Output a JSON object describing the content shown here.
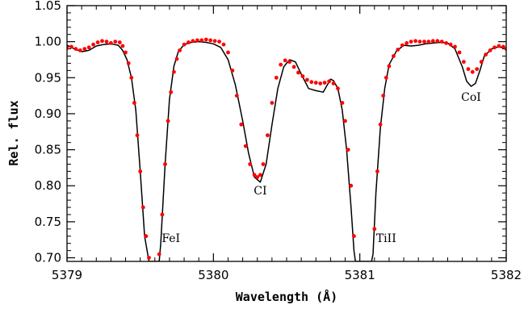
{
  "chart_data": {
    "type": "line",
    "xlabel": "Wavelength (Å)",
    "ylabel": "Rel. flux",
    "xlim": [
      5379.0,
      5382.0
    ],
    "ylim": [
      0.695,
      1.05
    ],
    "xticks": [
      5379,
      5380,
      5381,
      5382
    ],
    "xtick_labels": [
      "5379",
      "5380",
      "5381",
      "5382"
    ],
    "yticks": [
      0.7,
      0.75,
      0.8,
      0.85,
      0.9,
      0.95,
      1.0,
      1.05
    ],
    "ytick_labels": [
      "0.70",
      "0.75",
      "0.80",
      "0.85",
      "0.90",
      "0.95",
      "1.00",
      "1.05"
    ],
    "grid": false,
    "series": [
      {
        "style": "line",
        "color": "#000000",
        "x": [
          5379.0,
          5379.05,
          5379.1,
          5379.15,
          5379.2,
          5379.25,
          5379.3,
          5379.35,
          5379.38,
          5379.41,
          5379.44,
          5379.47,
          5379.5,
          5379.53,
          5379.56,
          5379.57,
          5379.6,
          5379.63,
          5379.64,
          5379.67,
          5379.7,
          5379.73,
          5379.76,
          5379.8,
          5379.85,
          5379.9,
          5379.95,
          5380.0,
          5380.05,
          5380.1,
          5380.15,
          5380.2,
          5380.24,
          5380.28,
          5380.32,
          5380.36,
          5380.4,
          5380.44,
          5380.48,
          5380.52,
          5380.56,
          5380.6,
          5380.65,
          5380.7,
          5380.75,
          5380.8,
          5380.82,
          5380.85,
          5380.88,
          5380.91,
          5380.94,
          5380.96,
          5380.97,
          5381.08,
          5381.09,
          5381.11,
          5381.14,
          5381.17,
          5381.2,
          5381.25,
          5381.3,
          5381.35,
          5381.4,
          5381.45,
          5381.5,
          5381.55,
          5381.6,
          5381.65,
          5381.7,
          5381.73,
          5381.76,
          5381.79,
          5381.82,
          5381.85,
          5381.9,
          5381.95,
          5382.0
        ],
        "y": [
          0.995,
          0.99,
          0.986,
          0.988,
          0.994,
          0.996,
          0.997,
          0.995,
          0.988,
          0.975,
          0.95,
          0.905,
          0.82,
          0.73,
          0.695,
          0.695,
          0.695,
          0.695,
          0.72,
          0.83,
          0.92,
          0.966,
          0.986,
          0.996,
          0.999,
          1.0,
          0.999,
          0.997,
          0.992,
          0.975,
          0.94,
          0.89,
          0.845,
          0.812,
          0.805,
          0.83,
          0.885,
          0.935,
          0.965,
          0.975,
          0.972,
          0.955,
          0.935,
          0.932,
          0.93,
          0.948,
          0.946,
          0.935,
          0.905,
          0.85,
          0.77,
          0.71,
          0.695,
          0.695,
          0.705,
          0.79,
          0.88,
          0.935,
          0.968,
          0.987,
          0.995,
          0.994,
          0.995,
          0.997,
          0.998,
          0.999,
          0.998,
          0.99,
          0.965,
          0.945,
          0.938,
          0.942,
          0.96,
          0.98,
          0.99,
          0.993,
          0.99
        ]
      },
      {
        "style": "points",
        "color": "#ff0000",
        "x": [
          5379.0,
          5379.03,
          5379.06,
          5379.09,
          5379.12,
          5379.15,
          5379.18,
          5379.21,
          5379.24,
          5379.27,
          5379.3,
          5379.33,
          5379.36,
          5379.38,
          5379.4,
          5379.42,
          5379.44,
          5379.46,
          5379.48,
          5379.5,
          5379.52,
          5379.54,
          5379.56,
          5379.63,
          5379.65,
          5379.67,
          5379.69,
          5379.71,
          5379.73,
          5379.75,
          5379.77,
          5379.8,
          5379.83,
          5379.86,
          5379.89,
          5379.92,
          5379.95,
          5379.98,
          5380.01,
          5380.04,
          5380.07,
          5380.1,
          5380.13,
          5380.16,
          5380.19,
          5380.22,
          5380.25,
          5380.28,
          5380.3,
          5380.32,
          5380.34,
          5380.37,
          5380.4,
          5380.43,
          5380.46,
          5380.49,
          5380.52,
          5380.55,
          5380.58,
          5380.61,
          5380.64,
          5380.67,
          5380.7,
          5380.73,
          5380.76,
          5380.79,
          5380.82,
          5380.85,
          5380.88,
          5380.9,
          5380.92,
          5380.94,
          5380.96,
          5381.1,
          5381.12,
          5381.14,
          5381.16,
          5381.18,
          5381.2,
          5381.23,
          5381.26,
          5381.29,
          5381.32,
          5381.35,
          5381.38,
          5381.41,
          5381.44,
          5381.47,
          5381.5,
          5381.53,
          5381.56,
          5381.59,
          5381.62,
          5381.65,
          5381.68,
          5381.71,
          5381.74,
          5381.77,
          5381.8,
          5381.83,
          5381.86,
          5381.89,
          5381.92,
          5381.95,
          5381.98,
          5382.0
        ],
        "y": [
          0.991,
          0.993,
          0.99,
          0.988,
          0.99,
          0.992,
          0.996,
          0.999,
          1.001,
          1.0,
          0.998,
          1.0,
          0.999,
          0.994,
          0.985,
          0.97,
          0.95,
          0.915,
          0.87,
          0.82,
          0.77,
          0.73,
          0.7,
          0.705,
          0.76,
          0.83,
          0.89,
          0.93,
          0.958,
          0.976,
          0.988,
          0.996,
          0.999,
          1.001,
          1.002,
          1.002,
          1.003,
          1.002,
          1.001,
          1.0,
          0.996,
          0.985,
          0.96,
          0.925,
          0.885,
          0.855,
          0.83,
          0.815,
          0.812,
          0.815,
          0.83,
          0.87,
          0.915,
          0.95,
          0.968,
          0.974,
          0.972,
          0.965,
          0.957,
          0.952,
          0.947,
          0.944,
          0.943,
          0.942,
          0.943,
          0.945,
          0.942,
          0.935,
          0.915,
          0.89,
          0.85,
          0.8,
          0.73,
          0.74,
          0.82,
          0.885,
          0.925,
          0.95,
          0.966,
          0.98,
          0.989,
          0.995,
          0.998,
          1.0,
          1.001,
          1.0,
          1.0,
          1.0,
          1.001,
          1.001,
          1.0,
          0.998,
          0.996,
          0.993,
          0.985,
          0.972,
          0.962,
          0.958,
          0.962,
          0.972,
          0.982,
          0.988,
          0.992,
          0.994,
          0.993,
          0.99
        ]
      }
    ],
    "annotations": [
      {
        "text": "FeI",
        "x": 5379.71,
        "y": 0.722
      },
      {
        "text": "CI",
        "x": 5380.32,
        "y": 0.788
      },
      {
        "text": "TiII",
        "x": 5381.18,
        "y": 0.722
      },
      {
        "text": "CoI",
        "x": 5381.76,
        "y": 0.918
      }
    ]
  }
}
